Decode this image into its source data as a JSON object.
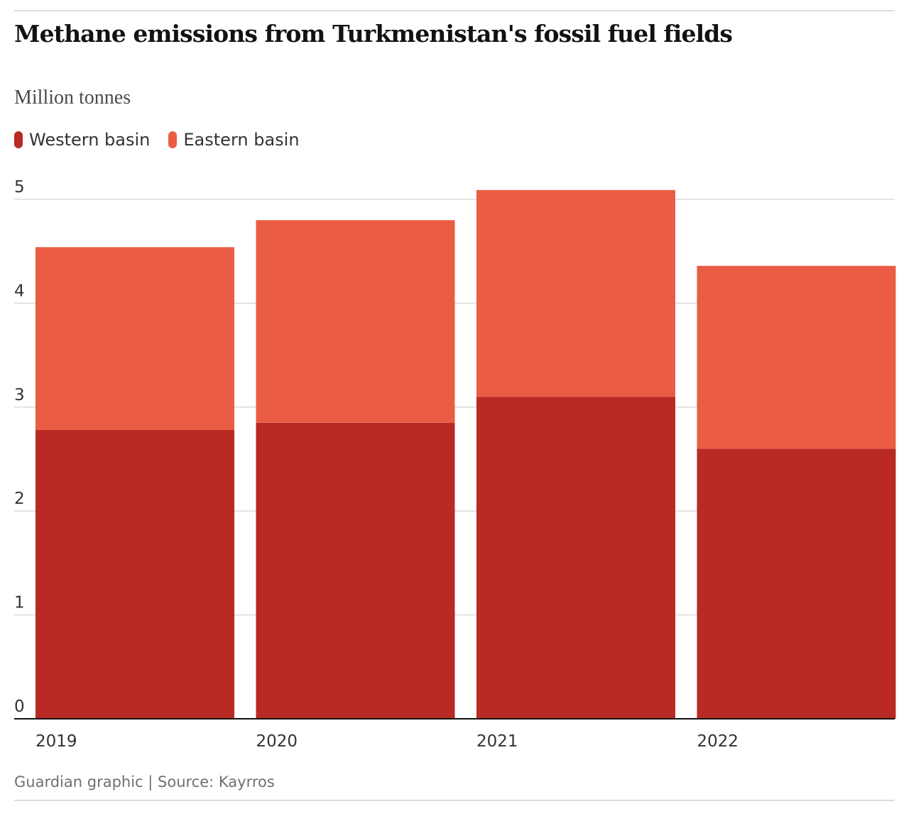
{
  "title": "Methane emissions from Turkmenistan's fossil fuel fields",
  "subtitle": "Million tonnes",
  "source": "Guardian graphic | Source: Kayrros",
  "colors": {
    "western": "#b82a23",
    "eastern": "#ea5c44",
    "grid": "#dcdcdc",
    "baseline": "#121212"
  },
  "legend": [
    {
      "label": "Western basin",
      "color": "#b82a23"
    },
    {
      "label": "Eastern basin",
      "color": "#ea5c44"
    }
  ],
  "chart_data": {
    "type": "bar",
    "stacked": true,
    "categories": [
      "2019",
      "2020",
      "2021",
      "2022"
    ],
    "series": [
      {
        "name": "Western basin",
        "values": [
          2.78,
          2.85,
          3.1,
          2.6
        ]
      },
      {
        "name": "Eastern basin",
        "values": [
          1.76,
          1.95,
          1.99,
          1.76
        ]
      }
    ],
    "ylim": [
      0,
      5
    ],
    "yticks": [
      0,
      1,
      2,
      3,
      4,
      5
    ],
    "grid": true,
    "legend_position": "top-left",
    "ylabel": "Million tonnes"
  }
}
